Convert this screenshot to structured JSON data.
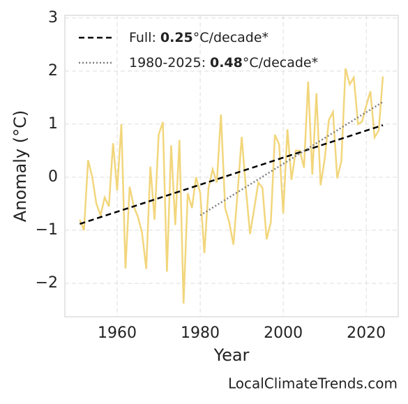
{
  "chart_data": {
    "type": "line",
    "x_label": "Year",
    "y_label": "Anomaly (°C)",
    "watermark": "LocalClimateTrends.com",
    "xlim": [
      1947.4,
      2027.7
    ],
    "ylim": [
      -2.63,
      3.05
    ],
    "xticks": [
      1960,
      1980,
      2000,
      2020
    ],
    "yticks": [
      3,
      2,
      1,
      0,
      {
        "value": -1,
        "label": "−1"
      },
      {
        "value": -2,
        "label": "−2"
      }
    ],
    "grid": true,
    "legend": "upper left",
    "x": [
      1951,
      1952,
      1953,
      1954,
      1955,
      1956,
      1957,
      1958,
      1959,
      1960,
      1961,
      1962,
      1963,
      1964,
      1965,
      1966,
      1967,
      1968,
      1969,
      1970,
      1971,
      1972,
      1973,
      1974,
      1975,
      1976,
      1977,
      1978,
      1979,
      1980,
      1981,
      1982,
      1983,
      1984,
      1985,
      1986,
      1987,
      1988,
      1989,
      1990,
      1991,
      1992,
      1993,
      1994,
      1995,
      1996,
      1997,
      1998,
      1999,
      2000,
      2001,
      2002,
      2003,
      2004,
      2005,
      2006,
      2007,
      2008,
      2009,
      2010,
      2011,
      2012,
      2013,
      2014,
      2015,
      2016,
      2017,
      2018,
      2019,
      2020,
      2021,
      2022,
      2023,
      2024
    ],
    "series": [
      {
        "color": "#f2d67c",
        "values": [
          -0.8,
          -1.0,
          0.32,
          0.0,
          -0.5,
          -0.72,
          -0.38,
          -0.55,
          0.64,
          -0.25,
          1.0,
          -1.72,
          -0.18,
          -0.55,
          -0.75,
          -1.05,
          -1.73,
          0.2,
          -0.8,
          0.8,
          1.04,
          -1.78,
          0.6,
          -0.9,
          0.7,
          -2.38,
          -0.3,
          -0.58,
          0.0,
          -0.3,
          -1.43,
          -0.2,
          0.15,
          -0.1,
          1.18,
          -0.58,
          -0.85,
          -1.27,
          -0.3,
          0.76,
          -0.2,
          -1.07,
          -0.6,
          -0.1,
          -0.2,
          -1.17,
          -0.85,
          0.8,
          0.62,
          -0.68,
          0.9,
          -0.05,
          0.5,
          0.5,
          0.18,
          1.8,
          0.05,
          1.58,
          -0.15,
          0.35,
          1.08,
          1.23,
          -0.02,
          0.3,
          2.05,
          1.75,
          1.88,
          1.0,
          1.05,
          1.35,
          1.62,
          0.75,
          0.88,
          1.9
        ]
      },
      {
        "name": "Full:",
        "rate": "0.25",
        "unit": "°C/decade*",
        "color": "#000000",
        "dash": "8 5",
        "x": [
          1951,
          2024
        ],
        "values": [
          -0.88,
          0.98
        ]
      },
      {
        "name": "1980-2025:",
        "rate": "0.48",
        "unit": "°C/decade*",
        "color": "#808080",
        "dash": "2 3",
        "x": [
          1980,
          2024
        ],
        "values": [
          -0.72,
          1.42
        ]
      }
    ]
  }
}
